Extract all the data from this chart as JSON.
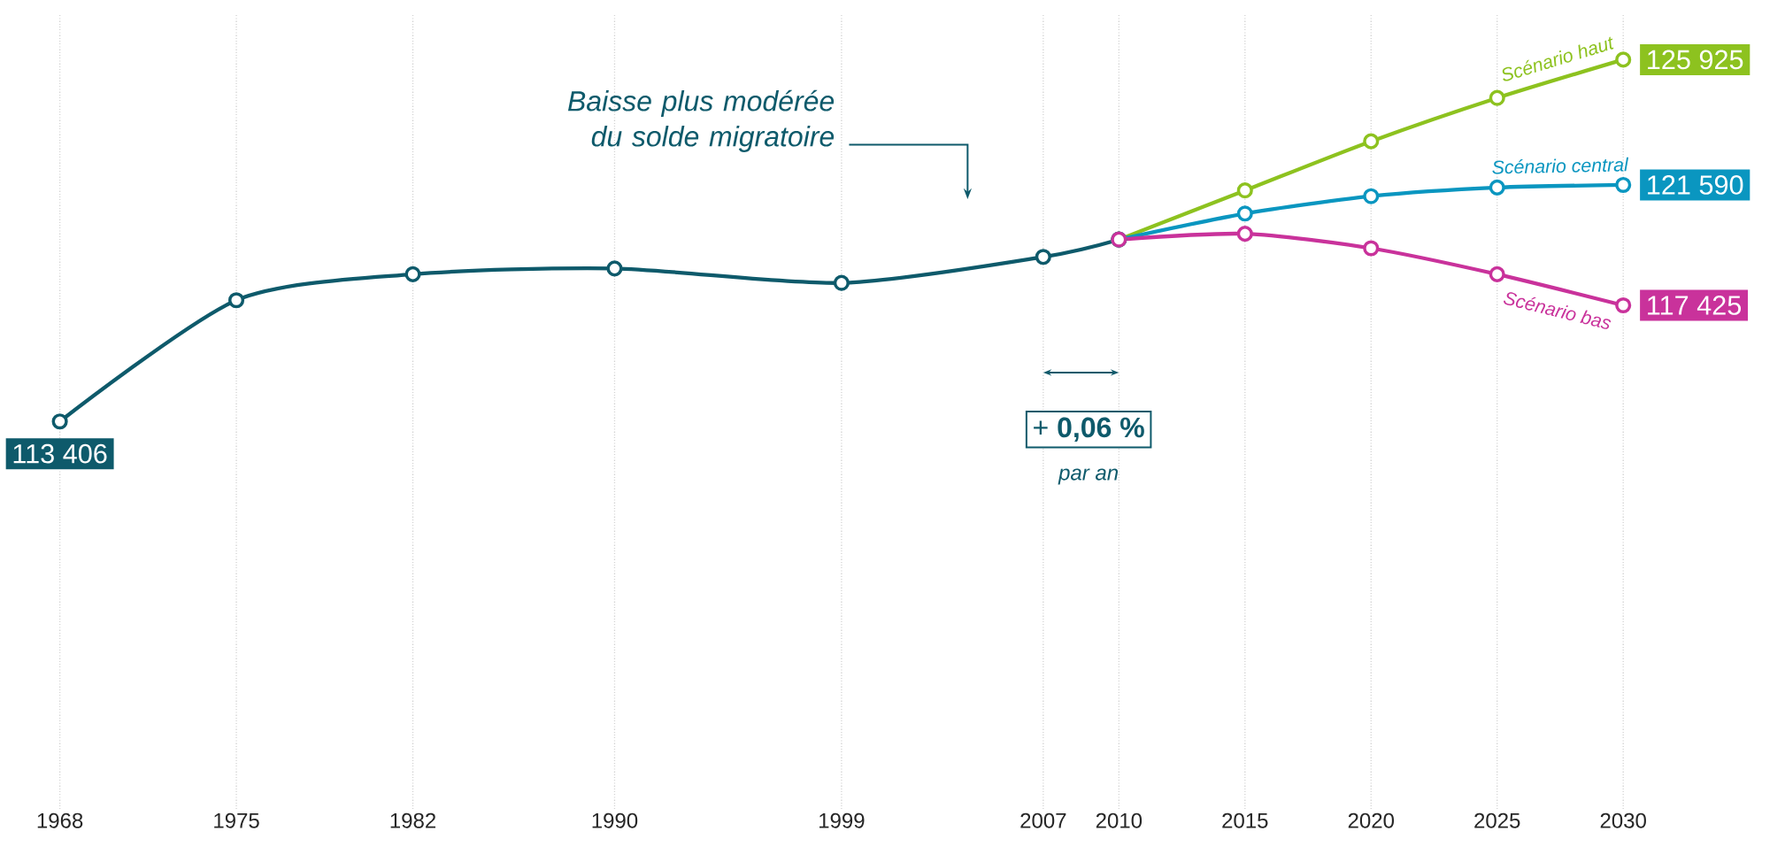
{
  "chart_data": {
    "type": "line",
    "xlim": [
      1968,
      2030
    ],
    "ylim": [
      100000,
      127500
    ],
    "xticks": [
      1968,
      1975,
      1982,
      1990,
      1999,
      2007,
      2010,
      2015,
      2020,
      2025,
      2030
    ],
    "grid": "x",
    "tick_labels": "x",
    "marker": "circle",
    "line_style": "solid",
    "series": [
      {
        "color": "#0e5a6b",
        "x": [
          1968,
          1975,
          1982,
          1990,
          1999,
          2007,
          2010
        ],
        "values": [
          113406,
          117600,
          118500,
          118700,
          118200,
          119100,
          119700
        ],
        "value_labels": [
          "113 406",
          null,
          null,
          null,
          null,
          null,
          null
        ]
      },
      {
        "name": "Scénario haut",
        "color": "#8dc21f",
        "x": [
          2010,
          2015,
          2020,
          2025,
          2030
        ],
        "values": [
          119700,
          121400,
          123100,
          124600,
          125925
        ],
        "value_labels": [
          null,
          null,
          null,
          null,
          "125 925"
        ]
      },
      {
        "name": "Scénario central",
        "color": "#0a96c0",
        "x": [
          2010,
          2015,
          2020,
          2025,
          2030
        ],
        "values": [
          119700,
          120600,
          121200,
          121500,
          121590
        ],
        "value_labels": [
          null,
          null,
          null,
          null,
          "121 590"
        ]
      },
      {
        "name": "Scénario bas",
        "color": "#c9329b",
        "x": [
          2010,
          2015,
          2020,
          2025,
          2030
        ],
        "values": [
          119700,
          119900,
          119400,
          118500,
          117425
        ],
        "value_labels": [
          null,
          null,
          null,
          null,
          "117 425"
        ]
      }
    ],
    "annotations": [
      "Baisse plus modérée du solde migratoire",
      "+ **0,06 %**",
      "par an"
    ]
  }
}
